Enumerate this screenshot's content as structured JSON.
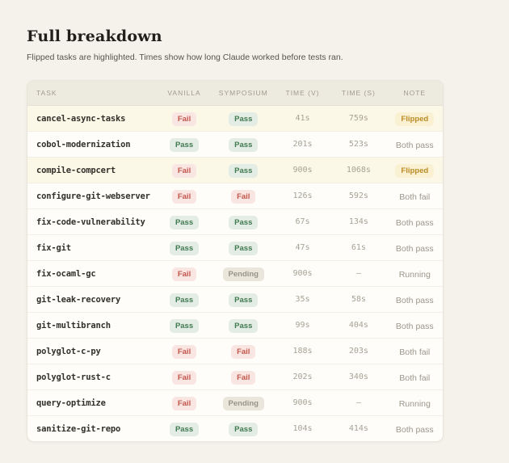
{
  "page": {
    "title": "Full breakdown",
    "subtitle": "Flipped tasks are highlighted. Times show how long Claude worked before tests ran."
  },
  "table": {
    "columns": [
      "TASK",
      "VANILLA",
      "SYMPOSIUM",
      "TIME (V)",
      "TIME (S)",
      "NOTE"
    ],
    "rows": [
      {
        "task": "cancel-async-tasks",
        "vanilla": "Fail",
        "symposium": "Pass",
        "time_v": "41s",
        "time_s": "759s",
        "note": "Flipped",
        "note_badge": true,
        "highlighted": true
      },
      {
        "task": "cobol-modernization",
        "vanilla": "Pass",
        "symposium": "Pass",
        "time_v": "201s",
        "time_s": "523s",
        "note": "Both pass",
        "note_badge": false,
        "highlighted": false
      },
      {
        "task": "compile-compcert",
        "vanilla": "Fail",
        "symposium": "Pass",
        "time_v": "900s",
        "time_s": "1068s",
        "note": "Flipped",
        "note_badge": true,
        "highlighted": true
      },
      {
        "task": "configure-git-webserver",
        "vanilla": "Fail",
        "symposium": "Fail",
        "time_v": "126s",
        "time_s": "592s",
        "note": "Both fail",
        "note_badge": false,
        "highlighted": false
      },
      {
        "task": "fix-code-vulnerability",
        "vanilla": "Pass",
        "symposium": "Pass",
        "time_v": "67s",
        "time_s": "134s",
        "note": "Both pass",
        "note_badge": false,
        "highlighted": false
      },
      {
        "task": "fix-git",
        "vanilla": "Pass",
        "symposium": "Pass",
        "time_v": "47s",
        "time_s": "61s",
        "note": "Both pass",
        "note_badge": false,
        "highlighted": false
      },
      {
        "task": "fix-ocaml-gc",
        "vanilla": "Fail",
        "symposium": "Pending",
        "time_v": "900s",
        "time_s": "–",
        "note": "Running",
        "note_badge": false,
        "highlighted": false
      },
      {
        "task": "git-leak-recovery",
        "vanilla": "Pass",
        "symposium": "Pass",
        "time_v": "35s",
        "time_s": "58s",
        "note": "Both pass",
        "note_badge": false,
        "highlighted": false
      },
      {
        "task": "git-multibranch",
        "vanilla": "Pass",
        "symposium": "Pass",
        "time_v": "99s",
        "time_s": "404s",
        "note": "Both pass",
        "note_badge": false,
        "highlighted": false
      },
      {
        "task": "polyglot-c-py",
        "vanilla": "Fail",
        "symposium": "Fail",
        "time_v": "188s",
        "time_s": "203s",
        "note": "Both fail",
        "note_badge": false,
        "highlighted": false
      },
      {
        "task": "polyglot-rust-c",
        "vanilla": "Fail",
        "symposium": "Fail",
        "time_v": "202s",
        "time_s": "340s",
        "note": "Both fail",
        "note_badge": false,
        "highlighted": false
      },
      {
        "task": "query-optimize",
        "vanilla": "Fail",
        "symposium": "Pending",
        "time_v": "900s",
        "time_s": "–",
        "note": "Running",
        "note_badge": false,
        "highlighted": false
      },
      {
        "task": "sanitize-git-repo",
        "vanilla": "Pass",
        "symposium": "Pass",
        "time_v": "104s",
        "time_s": "414s",
        "note": "Both pass",
        "note_badge": false,
        "highlighted": false
      }
    ]
  },
  "colors": {
    "page_background": "#f4f2ea",
    "card_background": "#fefdf9",
    "header_background": "#edeae0",
    "highlight_row_background": "#fcf8e8",
    "fail_badge_bg": "#f9e6e2",
    "fail_badge_text": "#c2564b",
    "pass_badge_bg": "#e3ede5",
    "pass_badge_text": "#41794f",
    "pending_badge_bg": "#eae6db",
    "pending_badge_text": "#99948a",
    "flipped_badge_bg": "#faf0d2",
    "flipped_badge_text": "#ba8c25"
  }
}
